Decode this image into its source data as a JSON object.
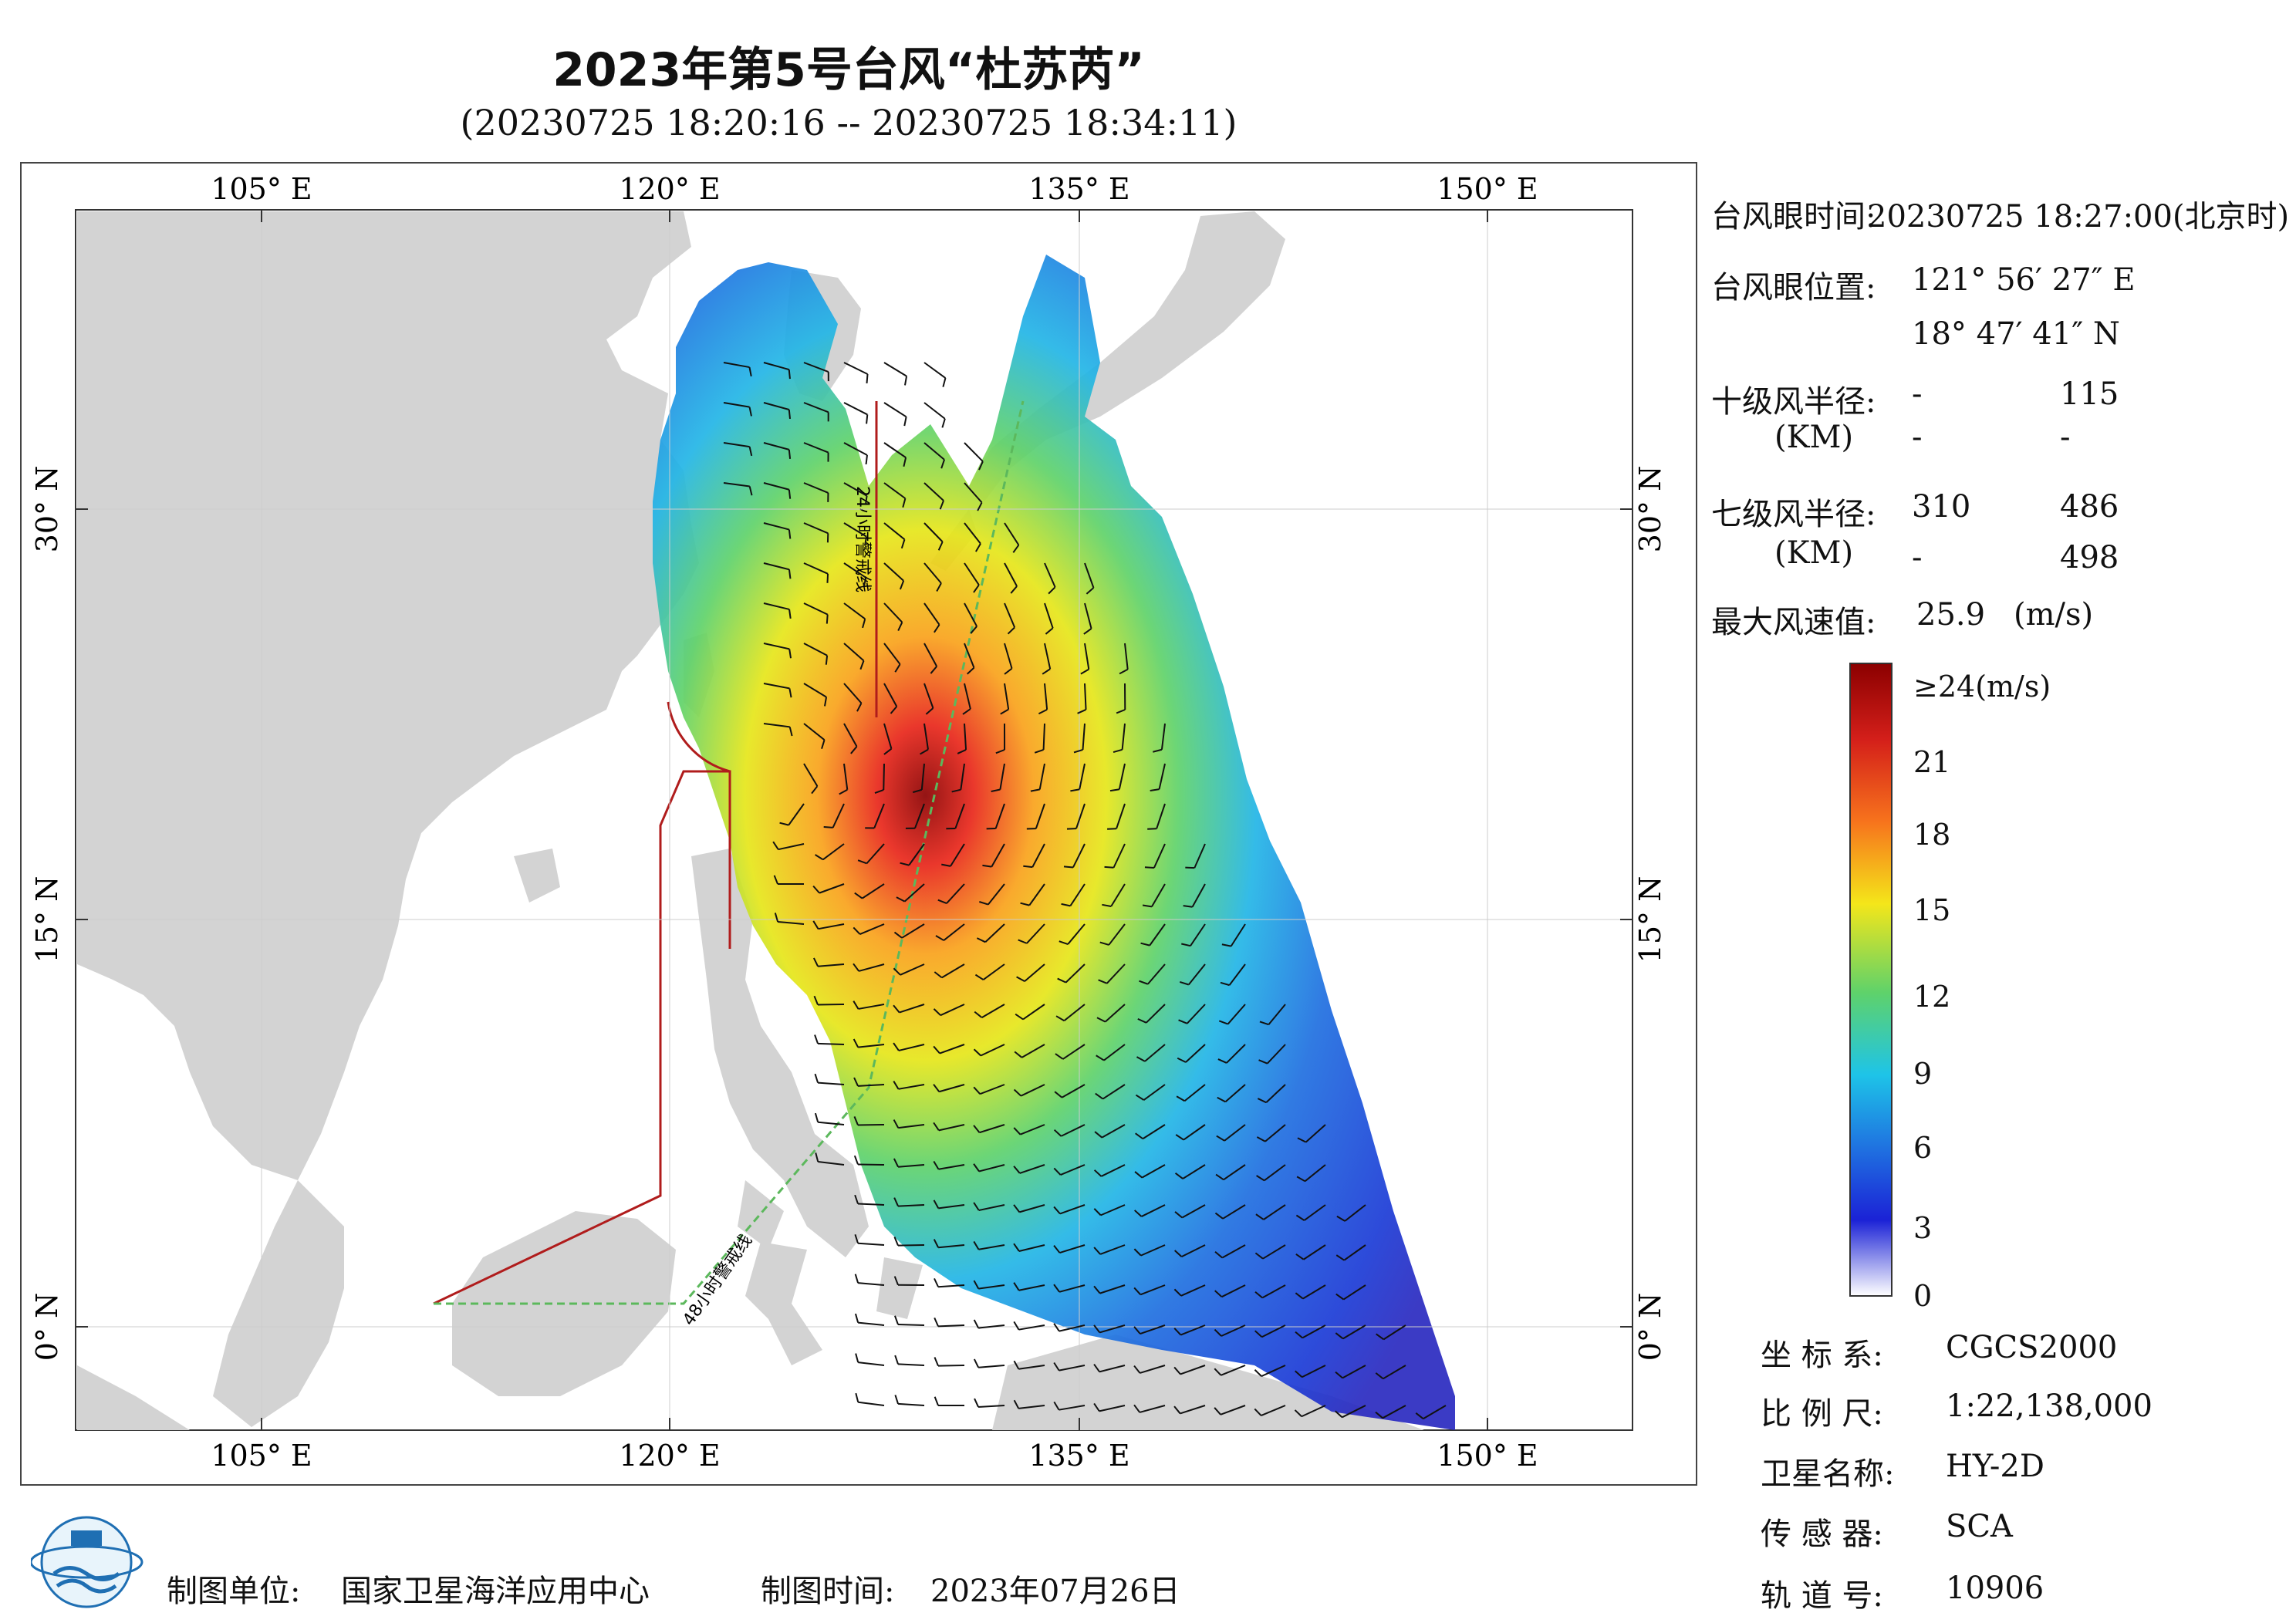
{
  "title": "2023年第5号台风“杜苏芮”",
  "subtitle": "(20230725 18:20:16 -- 20230725 18:34:11)",
  "map": {
    "lon_ticks": [
      "105° E",
      "120° E",
      "135° E",
      "150° E"
    ],
    "lat_ticks": [
      "30° N",
      "15° N",
      "0° N"
    ],
    "warning_24h": "24小时警戒线",
    "warning_48h": "48小时警戒线",
    "colors": {
      "land": "#d3d3d3",
      "sea": "#ffffff",
      "warning_24h": "#b01c1c",
      "warning_48h": "#5cb85c"
    }
  },
  "eye_info": {
    "time_label": "台风眼时间:",
    "time_value": "20230725 18:27:00(北京时)",
    "position_label": "台风眼位置:",
    "lon": "121° 56′ 27″ E",
    "lat": "18° 47′ 41″ N",
    "r10_label": "十级风半径:",
    "r10_unit": "(KM)",
    "r10_values": [
      "-",
      "115",
      "-",
      "-"
    ],
    "r7_label": "七级风半径:",
    "r7_unit": "(KM)",
    "r7_values": [
      "310",
      "486",
      "-",
      "498"
    ],
    "max_wind_label": "最大风速值:",
    "max_wind_value": "25.9",
    "max_wind_unit": "(m/s)"
  },
  "colorbar": {
    "labels": [
      "≥24(m/s)",
      "21",
      "18",
      "15",
      "12",
      "9",
      "6",
      "3",
      "0"
    ]
  },
  "meta": {
    "crs_label": "坐 标 系:",
    "crs_value": "CGCS2000",
    "scale_label": "比 例 尺:",
    "scale_value": "1:22,138,000",
    "sat_label": "卫星名称:",
    "sat_value": "HY-2D",
    "sensor_label": "传 感 器:",
    "sensor_value": "SCA",
    "orbit_label": "轨 道 号:",
    "orbit_value": "10906"
  },
  "footer": {
    "org_label": "制图单位:",
    "org_value": "国家卫星海洋应用中心",
    "date_label": "制图时间:",
    "date_value": "2023年07月26日"
  }
}
